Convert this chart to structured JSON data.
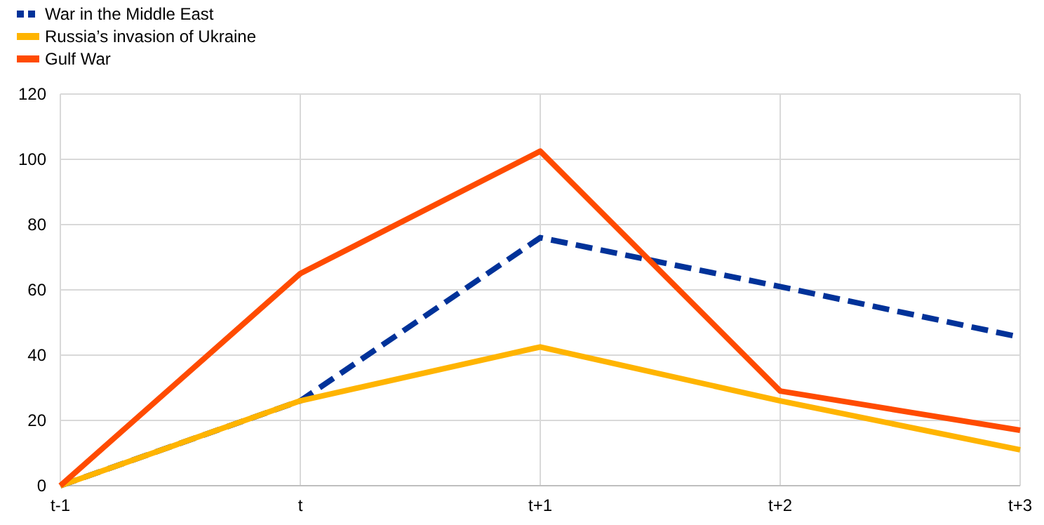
{
  "chart_data": {
    "type": "line",
    "categories": [
      "t-1",
      "t",
      "t+1",
      "t+2",
      "t+3"
    ],
    "series": [
      {
        "name": "War in the Middle East",
        "color": "#003299",
        "line_style": "dashed",
        "values": [
          0,
          26,
          76,
          61,
          45.5
        ]
      },
      {
        "name": "Russia’s invasion of Ukraine",
        "color": "#ffb400",
        "line_style": "solid",
        "values": [
          0,
          26,
          42.5,
          26,
          11
        ]
      },
      {
        "name": "Gulf War",
        "color": "#ff4b00",
        "line_style": "solid",
        "values": [
          0,
          65,
          102.5,
          29,
          17
        ]
      }
    ],
    "ylim": [
      0,
      120
    ],
    "yticks": [
      0,
      20,
      40,
      60,
      80,
      100,
      120
    ],
    "grid": true,
    "legend": "top left",
    "marker": "none"
  }
}
